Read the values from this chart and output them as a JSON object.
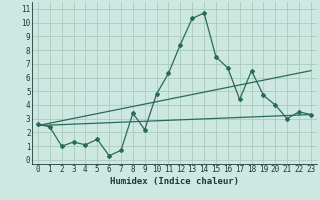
{
  "xlabel": "Humidex (Indice chaleur)",
  "background_color": "#cce8e0",
  "grid_color": "#aaccbb",
  "line_color": "#2a6a5a",
  "xlim": [
    -0.5,
    23.5
  ],
  "ylim": [
    -0.3,
    11.5
  ],
  "xticks": [
    0,
    1,
    2,
    3,
    4,
    5,
    6,
    7,
    8,
    9,
    10,
    11,
    12,
    13,
    14,
    15,
    16,
    17,
    18,
    19,
    20,
    21,
    22,
    23
  ],
  "yticks": [
    0,
    1,
    2,
    3,
    4,
    5,
    6,
    7,
    8,
    9,
    10,
    11
  ],
  "line1_x": [
    0,
    1,
    2,
    3,
    4,
    5,
    6,
    7,
    8,
    9,
    10,
    11,
    12,
    13,
    14,
    15,
    16,
    17,
    18,
    19,
    20,
    21,
    22,
    23
  ],
  "line1_y": [
    2.6,
    2.4,
    1.0,
    1.3,
    1.1,
    1.5,
    0.3,
    0.7,
    3.4,
    2.2,
    4.8,
    6.3,
    8.4,
    10.3,
    10.7,
    7.5,
    6.7,
    4.4,
    6.5,
    4.7,
    4.0,
    3.0,
    3.5,
    3.3
  ],
  "line2_x": [
    0,
    23
  ],
  "line2_y": [
    2.5,
    6.5
  ],
  "line3_x": [
    0,
    23
  ],
  "line3_y": [
    2.5,
    3.3
  ],
  "marker_size": 2.0,
  "line_width": 0.9,
  "tick_fontsize": 5.5,
  "xlabel_fontsize": 6.5
}
